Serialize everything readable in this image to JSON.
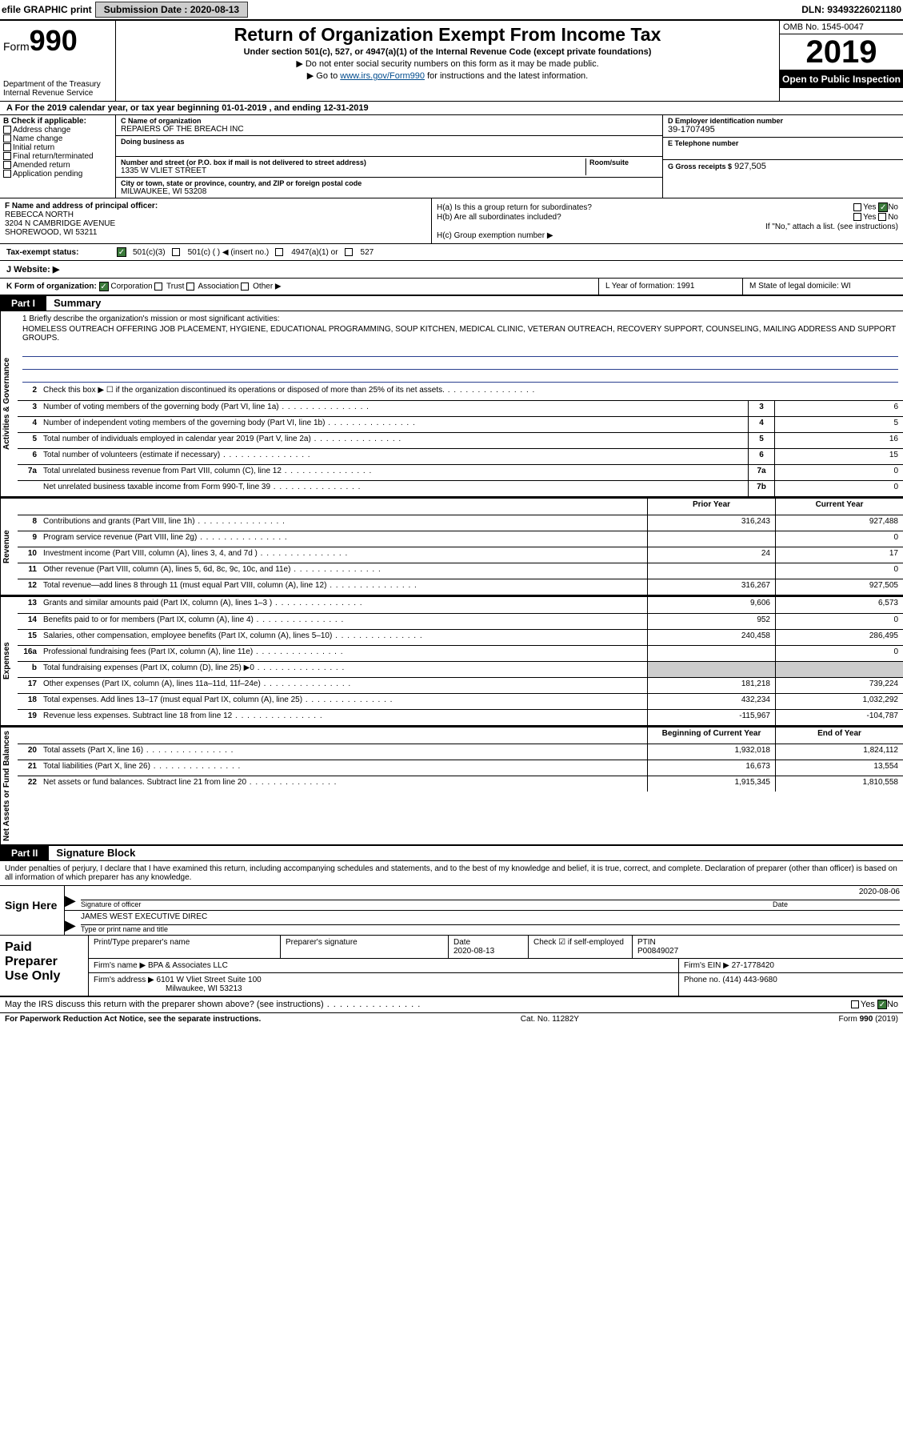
{
  "topbar": {
    "efile": "efile GRAPHIC print",
    "sub_label": "Submission Date :",
    "sub_date": "2020-08-13",
    "dln": "DLN: 93493226021180"
  },
  "header": {
    "form_word": "Form",
    "form_num": "990",
    "dept": "Department of the Treasury\nInternal Revenue Service",
    "title": "Return of Organization Exempt From Income Tax",
    "subtitle": "Under section 501(c), 527, or 4947(a)(1) of the Internal Revenue Code (except private foundations)",
    "note1": "▶ Do not enter social security numbers on this form as it may be made public.",
    "note2_pre": "▶ Go to ",
    "note2_link": "www.irs.gov/Form990",
    "note2_post": " for instructions and the latest information.",
    "omb": "OMB No. 1545-0047",
    "year": "2019",
    "open": "Open to Public Inspection"
  },
  "line_a": "A For the 2019 calendar year, or tax year beginning 01-01-2019   , and ending 12-31-2019",
  "box_b": {
    "hd": "B Check if applicable:",
    "opts": [
      "Address change",
      "Name change",
      "Initial return",
      "Final return/terminated",
      "Amended return",
      "Application pending"
    ]
  },
  "box_c": {
    "name_lbl": "C Name of organization",
    "name": "REPAIERS OF THE BREACH INC",
    "dba_lbl": "Doing business as",
    "addr_lbl": "Number and street (or P.O. box if mail is not delivered to street address)",
    "room_lbl": "Room/suite",
    "addr": "1335 W VLIET STREET",
    "city_lbl": "City or town, state or province, country, and ZIP or foreign postal code",
    "city": "MILWAUKEE, WI  53208"
  },
  "box_d": {
    "lbl": "D Employer identification number",
    "val": "39-1707495"
  },
  "box_e": {
    "lbl": "E Telephone number",
    "val": ""
  },
  "box_g": {
    "lbl": "G Gross receipts $",
    "val": "927,505"
  },
  "box_f": {
    "lbl": "F  Name and address of principal officer:",
    "name": "REBECCA NORTH",
    "addr1": "3204 N CAMBRIDGE AVENUE",
    "addr2": "SHOREWOOD, WI  53211"
  },
  "box_h": {
    "a": "H(a)  Is this a group return for subordinates?",
    "a_yes": "Yes",
    "a_no": "No",
    "b": "H(b)  Are all subordinates included?",
    "b_yes": "Yes",
    "b_no": "No",
    "note": "If \"No,\" attach a list. (see instructions)",
    "c": "H(c)  Group exemption number ▶"
  },
  "row_i": {
    "lbl": "Tax-exempt status:",
    "o1": "501(c)(3)",
    "o2": "501(c) (  ) ◀ (insert no.)",
    "o3": "4947(a)(1) or",
    "o4": "527"
  },
  "row_j": "J   Website: ▶",
  "row_k": {
    "k": "K Form of organization:",
    "opts": [
      "Corporation",
      "Trust",
      "Association",
      "Other ▶"
    ],
    "l": "L Year of formation: 1991",
    "m": "M State of legal domicile: WI"
  },
  "part1": {
    "hdr": "Part I",
    "title": "Summary"
  },
  "sections": {
    "gov": "Activities & Governance",
    "rev": "Revenue",
    "exp": "Expenses",
    "net": "Net Assets or Fund Balances"
  },
  "mission": {
    "lbl": "1   Briefly describe the organization's mission or most significant activities:",
    "text": "HOMELESS OUTREACH OFFERING JOB PLACEMENT, HYGIENE, EDUCATIONAL PROGRAMMING, SOUP KITCHEN, MEDICAL CLINIC, VETERAN OUTREACH, RECOVERY SUPPORT, COUNSELING, MAILING ADDRESS AND SUPPORT GROUPS."
  },
  "lines_gov": [
    {
      "n": "2",
      "t": "Check this box ▶ ☐  if the organization discontinued its operations or disposed of more than 25% of its net assets.",
      "sn": "",
      "v": ""
    },
    {
      "n": "3",
      "t": "Number of voting members of the governing body (Part VI, line 1a)",
      "sn": "3",
      "v": "6"
    },
    {
      "n": "4",
      "t": "Number of independent voting members of the governing body (Part VI, line 1b)",
      "sn": "4",
      "v": "5"
    },
    {
      "n": "5",
      "t": "Total number of individuals employed in calendar year 2019 (Part V, line 2a)",
      "sn": "5",
      "v": "16"
    },
    {
      "n": "6",
      "t": "Total number of volunteers (estimate if necessary)",
      "sn": "6",
      "v": "15"
    },
    {
      "n": "7a",
      "t": "Total unrelated business revenue from Part VIII, column (C), line 12",
      "sn": "7a",
      "v": "0"
    },
    {
      "n": "",
      "t": "Net unrelated business taxable income from Form 990-T, line 39",
      "sn": "7b",
      "v": "0"
    }
  ],
  "cols": {
    "prior": "Prior Year",
    "current": "Current Year"
  },
  "lines_rev": [
    {
      "n": "8",
      "t": "Contributions and grants (Part VIII, line 1h)",
      "p": "316,243",
      "c": "927,488"
    },
    {
      "n": "9",
      "t": "Program service revenue (Part VIII, line 2g)",
      "p": "",
      "c": "0"
    },
    {
      "n": "10",
      "t": "Investment income (Part VIII, column (A), lines 3, 4, and 7d )",
      "p": "24",
      "c": "17"
    },
    {
      "n": "11",
      "t": "Other revenue (Part VIII, column (A), lines 5, 6d, 8c, 9c, 10c, and 11e)",
      "p": "",
      "c": "0"
    },
    {
      "n": "12",
      "t": "Total revenue—add lines 8 through 11 (must equal Part VIII, column (A), line 12)",
      "p": "316,267",
      "c": "927,505"
    }
  ],
  "lines_exp": [
    {
      "n": "13",
      "t": "Grants and similar amounts paid (Part IX, column (A), lines 1–3 )",
      "p": "9,606",
      "c": "6,573"
    },
    {
      "n": "14",
      "t": "Benefits paid to or for members (Part IX, column (A), line 4)",
      "p": "952",
      "c": "0"
    },
    {
      "n": "15",
      "t": "Salaries, other compensation, employee benefits (Part IX, column (A), lines 5–10)",
      "p": "240,458",
      "c": "286,495"
    },
    {
      "n": "16a",
      "t": "Professional fundraising fees (Part IX, column (A), line 11e)",
      "p": "",
      "c": "0"
    },
    {
      "n": "b",
      "t": "Total fundraising expenses (Part IX, column (D), line 25) ▶0",
      "p": "SHADE",
      "c": "SHADE"
    },
    {
      "n": "17",
      "t": "Other expenses (Part IX, column (A), lines 11a–11d, 11f–24e)",
      "p": "181,218",
      "c": "739,224"
    },
    {
      "n": "18",
      "t": "Total expenses. Add lines 13–17 (must equal Part IX, column (A), line 25)",
      "p": "432,234",
      "c": "1,032,292"
    },
    {
      "n": "19",
      "t": "Revenue less expenses. Subtract line 18 from line 12",
      "p": "-115,967",
      "c": "-104,787"
    }
  ],
  "cols2": {
    "beg": "Beginning of Current Year",
    "end": "End of Year"
  },
  "lines_net": [
    {
      "n": "20",
      "t": "Total assets (Part X, line 16)",
      "p": "1,932,018",
      "c": "1,824,112"
    },
    {
      "n": "21",
      "t": "Total liabilities (Part X, line 26)",
      "p": "16,673",
      "c": "13,554"
    },
    {
      "n": "22",
      "t": "Net assets or fund balances. Subtract line 21 from line 20",
      "p": "1,915,345",
      "c": "1,810,558"
    }
  ],
  "part2": {
    "hdr": "Part II",
    "title": "Signature Block"
  },
  "sig_intro": "Under penalties of perjury, I declare that I have examined this return, including accompanying schedules and statements, and to the best of my knowledge and belief, it is true, correct, and complete. Declaration of preparer (other than officer) is based on all information of which preparer has any knowledge.",
  "sign": {
    "left": "Sign Here",
    "r1a": "Signature of officer",
    "r1b": "Date",
    "r1b_val": "2020-08-06",
    "r2a_val": "JAMES WEST EXECUTIVE DIREC",
    "r2a": "Type or print name and title"
  },
  "prep": {
    "left": "Paid Preparer Use Only",
    "h1": "Print/Type preparer's name",
    "h2": "Preparer's signature",
    "h3": "Date",
    "h3v": "2020-08-13",
    "h4": "Check ☑ if self-employed",
    "h5": "PTIN",
    "h5v": "P00849027",
    "firm_lbl": "Firm's name    ▶",
    "firm": "BPA & Associates LLC",
    "ein_lbl": "Firm's EIN ▶",
    "ein": "27-1778420",
    "addr_lbl": "Firm's address ▶",
    "addr1": "6101 W Vliet Street Suite 100",
    "addr2": "Milwaukee, WI  53213",
    "phone_lbl": "Phone no.",
    "phone": "(414) 443-9680"
  },
  "irs_discuss": "May the IRS discuss this return with the preparer shown above? (see instructions)",
  "footer": {
    "left": "For Paperwork Reduction Act Notice, see the separate instructions.",
    "mid": "Cat. No. 11282Y",
    "right": "Form 990 (2019)"
  },
  "colors": {
    "accent": "#004b8d",
    "shade": "#cdcdcd",
    "checkgreen": "#3b7a3b"
  }
}
